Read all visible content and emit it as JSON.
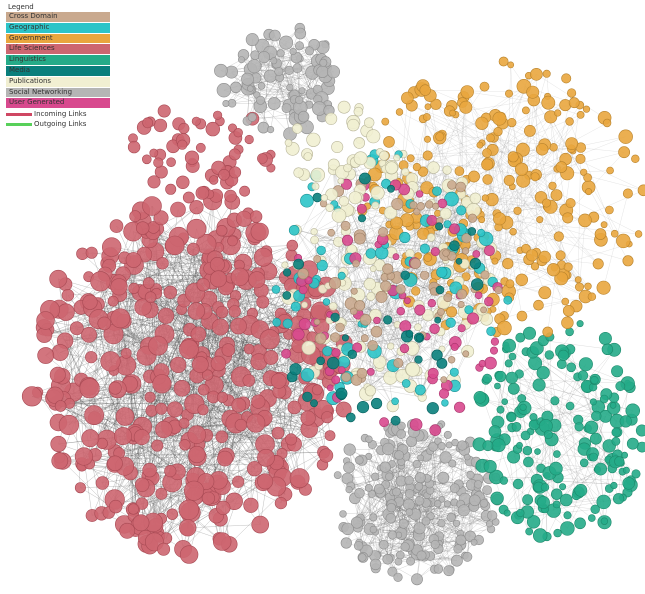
{
  "legend": {
    "title": "Legend",
    "categories": [
      {
        "label": "Cross Domain",
        "color": "#c9a98e"
      },
      {
        "label": "Geographic",
        "color": "#2cc4c8"
      },
      {
        "label": "Government",
        "color": "#e9a63e"
      },
      {
        "label": "Life Sciences",
        "color": "#cd6670"
      },
      {
        "label": "Linguistics",
        "color": "#25ab88"
      },
      {
        "label": "Media",
        "color": "#0a7f7c"
      },
      {
        "label": "Publications",
        "color": "#f1efd2"
      },
      {
        "label": "Social Networking",
        "color": "#b5b5b5"
      },
      {
        "label": "User Generated",
        "color": "#d8498e"
      }
    ],
    "links": [
      {
        "label": "Incoming Links",
        "color": "#cf4763"
      },
      {
        "label": "Outgoing Links",
        "color": "#58d05a"
      }
    ]
  }
}
